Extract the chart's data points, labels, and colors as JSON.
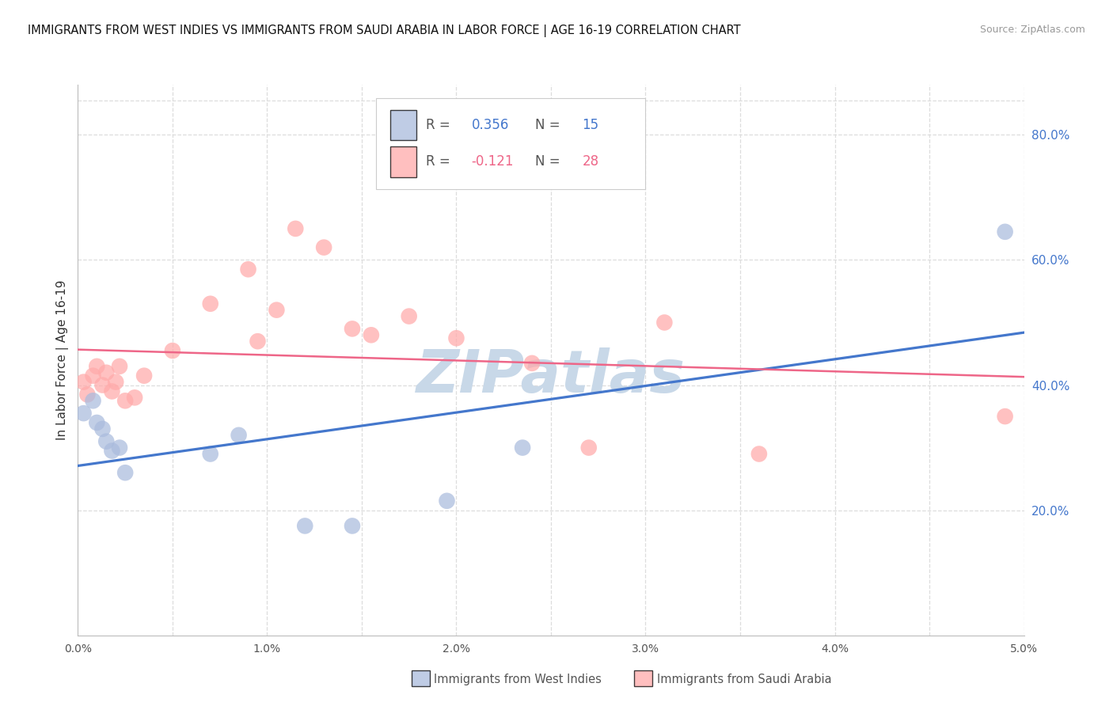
{
  "title": "IMMIGRANTS FROM WEST INDIES VS IMMIGRANTS FROM SAUDI ARABIA IN LABOR FORCE | AGE 16-19 CORRELATION CHART",
  "source": "Source: ZipAtlas.com",
  "ylabel": "In Labor Force | Age 16-19",
  "xlim": [
    0.0,
    0.05
  ],
  "ylim": [
    0.0,
    0.88
  ],
  "ytick_values": [
    0.2,
    0.4,
    0.6,
    0.8
  ],
  "ytick_labels": [
    "20.0%",
    "40.0%",
    "60.0%",
    "80.0%"
  ],
  "xtick_values": [
    0.0,
    0.005,
    0.01,
    0.015,
    0.02,
    0.025,
    0.03,
    0.035,
    0.04,
    0.045,
    0.05
  ],
  "xtick_labels": [
    "0.0%",
    "",
    "1.0%",
    "",
    "2.0%",
    "",
    "3.0%",
    "",
    "4.0%",
    "",
    "5.0%"
  ],
  "blue_r": 0.356,
  "blue_n": 15,
  "pink_r": -0.121,
  "pink_n": 28,
  "blue_fill": "#AABBDD",
  "pink_fill": "#FFAAAA",
  "blue_line": "#4477CC",
  "pink_line": "#EE6688",
  "blue_label": "Immigrants from West Indies",
  "pink_label": "Immigrants from Saudi Arabia",
  "blue_x": [
    0.0003,
    0.0008,
    0.001,
    0.0013,
    0.0015,
    0.0018,
    0.0022,
    0.0025,
    0.007,
    0.0085,
    0.012,
    0.0145,
    0.0195,
    0.0235,
    0.049
  ],
  "blue_y": [
    0.355,
    0.375,
    0.34,
    0.33,
    0.31,
    0.295,
    0.3,
    0.26,
    0.29,
    0.32,
    0.175,
    0.175,
    0.215,
    0.3,
    0.645
  ],
  "pink_x": [
    0.0003,
    0.0005,
    0.0008,
    0.001,
    0.0013,
    0.0015,
    0.0018,
    0.002,
    0.0022,
    0.0025,
    0.003,
    0.0035,
    0.005,
    0.007,
    0.009,
    0.0095,
    0.0105,
    0.0115,
    0.013,
    0.0145,
    0.0155,
    0.0175,
    0.02,
    0.024,
    0.027,
    0.031,
    0.036,
    0.049
  ],
  "pink_y": [
    0.405,
    0.385,
    0.415,
    0.43,
    0.4,
    0.42,
    0.39,
    0.405,
    0.43,
    0.375,
    0.38,
    0.415,
    0.455,
    0.53,
    0.585,
    0.47,
    0.52,
    0.65,
    0.62,
    0.49,
    0.48,
    0.51,
    0.475,
    0.435,
    0.3,
    0.5,
    0.29,
    0.35
  ],
  "grid_color": "#DDDDDD",
  "bg_color": "#FFFFFF",
  "watermark": "ZIPatlas",
  "watermark_color": "#C8D8E8"
}
